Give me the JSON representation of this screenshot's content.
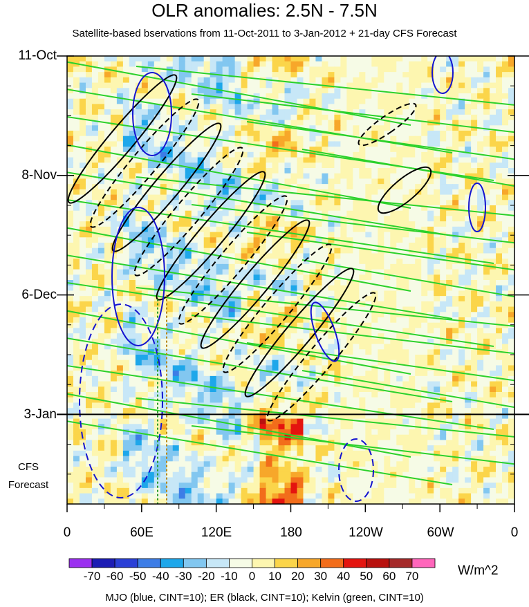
{
  "chart_data": {
    "type": "heatmap",
    "title": "OLR anomalies: 2.5N - 7.5N",
    "subtitle": "Satellite-based bservations from 11-Oct-2011 to 3-Jan-2012 + 21-day CFS Forecast",
    "x_ticks": [
      "0",
      "60E",
      "120E",
      "180",
      "120W",
      "60W",
      "0"
    ],
    "x_tick_lon": [
      0,
      60,
      120,
      180,
      240,
      300,
      360
    ],
    "x_range": [
      0,
      360
    ],
    "y_ticks": [
      "11-Oct",
      "8-Nov",
      "6-Dec",
      "3-Jan"
    ],
    "y_tick_day": [
      0,
      28,
      56,
      84
    ],
    "y_range_days": [
      0,
      105
    ],
    "observation_end_label": "3-Jan",
    "forecast_label_lines": [
      "CFS",
      "Forecast"
    ],
    "colorbar": {
      "labels": [
        "-70",
        "-60",
        "-50",
        "-40",
        "-30",
        "-20",
        "-10",
        "0",
        "10",
        "20",
        "30",
        "40",
        "50",
        "60",
        "70"
      ],
      "colors": [
        "#9b30f0",
        "#1c1cb4",
        "#2a3fd6",
        "#3d7de6",
        "#1ea7ea",
        "#82c7f0",
        "#c7e7f7",
        "#f6fbe6",
        "#fdf6b0",
        "#fbd54a",
        "#f7a72a",
        "#f26d1b",
        "#e4140f",
        "#b8110e",
        "#a52a2a",
        "#ff66bb"
      ],
      "units": "W/m^2"
    },
    "contour_legend": "MJO (blue, CINT=10); ER (black, CINT=10); Kelvin (green, CINT=10)",
    "contour_colors": {
      "mjo": "#1414d0",
      "er": "#000000",
      "kelvin": "#2bd12b"
    }
  }
}
